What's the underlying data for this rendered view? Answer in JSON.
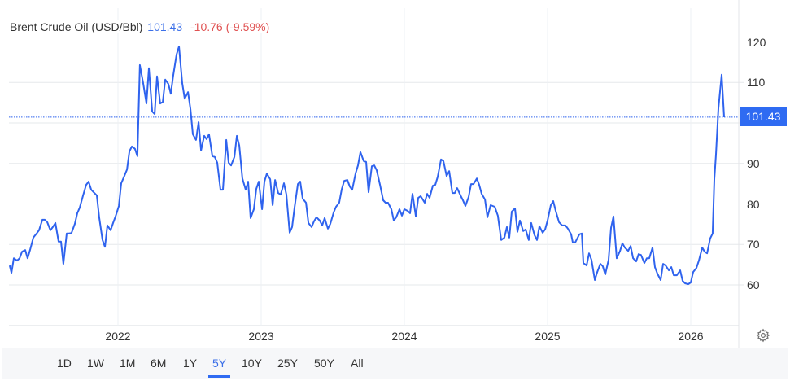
{
  "header": {
    "name": "Brent Crude Oil (USD/Bbl)",
    "price": "101.43",
    "change": "-10.76 (-9.59%)"
  },
  "colors": {
    "line": "#2f63ee",
    "price_text": "#3b6fe8",
    "change_negative": "#e05252",
    "price_tag_bg": "#2f6bf2",
    "grid": "#e6e8eb"
  },
  "y_axis": {
    "ticks": [
      "120",
      "110",
      "90",
      "80",
      "70",
      "60"
    ],
    "tick_values": [
      120,
      110,
      90,
      80,
      70,
      60
    ],
    "current_price_label": "101.43"
  },
  "x_axis": {
    "ticks": [
      "2022",
      "2023",
      "2024",
      "2025",
      "2026"
    ]
  },
  "ranges": {
    "items": [
      "1D",
      "1W",
      "1M",
      "6M",
      "1Y",
      "5Y",
      "10Y",
      "25Y",
      "50Y",
      "All"
    ],
    "active": "5Y"
  },
  "settings_icon": "gear-icon",
  "chart_data": {
    "type": "line",
    "title": "Brent Crude Oil (USD/Bbl)",
    "xlabel": "",
    "ylabel": "USD/Bbl",
    "ylim": [
      50,
      124
    ],
    "xlim": [
      2021.24,
      2026.24
    ],
    "x_ticks": [
      2022,
      2023,
      2024,
      2025,
      2026
    ],
    "y_ticks": [
      60,
      70,
      80,
      90,
      100,
      110,
      120
    ],
    "grid": true,
    "legend": "none",
    "last_value": 101.43,
    "last_change": -10.76,
    "last_change_pct": -9.59,
    "series": [
      {
        "name": "Brent Crude Oil",
        "points": [
          [
            2021.244,
            64.8
          ],
          [
            2021.256,
            63.0
          ],
          [
            2021.273,
            66.6
          ],
          [
            2021.295,
            66.0
          ],
          [
            2021.313,
            66.6
          ],
          [
            2021.33,
            68.2
          ],
          [
            2021.352,
            68.6
          ],
          [
            2021.369,
            66.6
          ],
          [
            2021.386,
            68.6
          ],
          [
            2021.409,
            71.7
          ],
          [
            2021.432,
            72.7
          ],
          [
            2021.449,
            73.5
          ],
          [
            2021.472,
            76.1
          ],
          [
            2021.489,
            76.1
          ],
          [
            2021.506,
            75.5
          ],
          [
            2021.528,
            73.5
          ],
          [
            2021.545,
            74.3
          ],
          [
            2021.563,
            75.3
          ],
          [
            2021.585,
            70.7
          ],
          [
            2021.602,
            70.7
          ],
          [
            2021.619,
            65.2
          ],
          [
            2021.642,
            72.7
          ],
          [
            2021.659,
            72.7
          ],
          [
            2021.676,
            72.9
          ],
          [
            2021.699,
            75.1
          ],
          [
            2021.716,
            77.7
          ],
          [
            2021.733,
            79.1
          ],
          [
            2021.756,
            82.1
          ],
          [
            2021.778,
            84.7
          ],
          [
            2021.795,
            85.5
          ],
          [
            2021.813,
            83.5
          ],
          [
            2021.835,
            82.7
          ],
          [
            2021.852,
            82.1
          ],
          [
            2021.869,
            76.7
          ],
          [
            2021.892,
            71.1
          ],
          [
            2021.909,
            69.4
          ],
          [
            2021.926,
            74.7
          ],
          [
            2021.949,
            73.5
          ],
          [
            2021.966,
            75.3
          ],
          [
            2021.983,
            76.9
          ],
          [
            2022.006,
            79.5
          ],
          [
            2022.023,
            85.1
          ],
          [
            2022.04,
            86.5
          ],
          [
            2022.063,
            88.5
          ],
          [
            2022.08,
            93.0
          ],
          [
            2022.097,
            94.2
          ],
          [
            2022.119,
            93.6
          ],
          [
            2022.136,
            91.8
          ],
          [
            2022.153,
            114.3
          ],
          [
            2022.176,
            109.8
          ],
          [
            2022.199,
            104.8
          ],
          [
            2022.216,
            113.5
          ],
          [
            2022.239,
            102.8
          ],
          [
            2022.256,
            102.2
          ],
          [
            2022.273,
            111.5
          ],
          [
            2022.295,
            104.8
          ],
          [
            2022.313,
            105.2
          ],
          [
            2022.33,
            110.7
          ],
          [
            2022.352,
            109.6
          ],
          [
            2022.369,
            107.2
          ],
          [
            2022.386,
            111.7
          ],
          [
            2022.409,
            116.9
          ],
          [
            2022.426,
            118.9
          ],
          [
            2022.449,
            109.8
          ],
          [
            2022.466,
            106.0
          ],
          [
            2022.489,
            107.6
          ],
          [
            2022.506,
            103.4
          ],
          [
            2022.523,
            97.2
          ],
          [
            2022.545,
            95.8
          ],
          [
            2022.563,
            100.2
          ],
          [
            2022.58,
            93.2
          ],
          [
            2022.602,
            96.8
          ],
          [
            2022.619,
            96.0
          ],
          [
            2022.636,
            97.2
          ],
          [
            2022.659,
            91.8
          ],
          [
            2022.676,
            91.6
          ],
          [
            2022.693,
            90.2
          ],
          [
            2022.716,
            83.5
          ],
          [
            2022.733,
            83.5
          ],
          [
            2022.756,
            95.8
          ],
          [
            2022.773,
            90.2
          ],
          [
            2022.79,
            89.5
          ],
          [
            2022.813,
            91.6
          ],
          [
            2022.83,
            96.8
          ],
          [
            2022.847,
            94.4
          ],
          [
            2022.869,
            86.3
          ],
          [
            2022.892,
            83.5
          ],
          [
            2022.909,
            85.5
          ],
          [
            2022.926,
            76.5
          ],
          [
            2022.949,
            78.7
          ],
          [
            2022.966,
            83.7
          ],
          [
            2022.983,
            85.5
          ],
          [
            2023.006,
            78.7
          ],
          [
            2023.023,
            85.5
          ],
          [
            2023.04,
            87.5
          ],
          [
            2023.063,
            86.1
          ],
          [
            2023.08,
            79.7
          ],
          [
            2023.097,
            85.9
          ],
          [
            2023.119,
            82.7
          ],
          [
            2023.136,
            82.3
          ],
          [
            2023.159,
            85.1
          ],
          [
            2023.176,
            82.3
          ],
          [
            2023.199,
            72.9
          ],
          [
            2023.216,
            74.3
          ],
          [
            2023.233,
            79.1
          ],
          [
            2023.256,
            84.9
          ],
          [
            2023.273,
            85.5
          ],
          [
            2023.29,
            81.3
          ],
          [
            2023.313,
            80.3
          ],
          [
            2023.33,
            75.3
          ],
          [
            2023.352,
            74.3
          ],
          [
            2023.369,
            75.7
          ],
          [
            2023.386,
            76.7
          ],
          [
            2023.409,
            75.9
          ],
          [
            2023.426,
            74.7
          ],
          [
            2023.443,
            76.5
          ],
          [
            2023.466,
            73.9
          ],
          [
            2023.483,
            75.1
          ],
          [
            2023.506,
            77.9
          ],
          [
            2023.523,
            79.3
          ],
          [
            2023.545,
            80.3
          ],
          [
            2023.563,
            83.7
          ],
          [
            2023.58,
            85.7
          ],
          [
            2023.602,
            85.9
          ],
          [
            2023.619,
            84.3
          ],
          [
            2023.636,
            83.5
          ],
          [
            2023.659,
            87.5
          ],
          [
            2023.676,
            89.5
          ],
          [
            2023.693,
            92.8
          ],
          [
            2023.716,
            90.6
          ],
          [
            2023.733,
            90.4
          ],
          [
            2023.75,
            82.9
          ],
          [
            2023.773,
            89.3
          ],
          [
            2023.79,
            89.5
          ],
          [
            2023.807,
            88.3
          ],
          [
            2023.83,
            84.7
          ],
          [
            2023.852,
            80.9
          ],
          [
            2023.869,
            80.3
          ],
          [
            2023.886,
            80.3
          ],
          [
            2023.909,
            78.7
          ],
          [
            2023.926,
            75.9
          ],
          [
            2023.943,
            76.7
          ],
          [
            2023.966,
            78.7
          ],
          [
            2023.983,
            77.1
          ],
          [
            2024.0,
            78.7
          ],
          [
            2024.023,
            78.3
          ],
          [
            2024.04,
            77.7
          ],
          [
            2024.057,
            82.5
          ],
          [
            2024.08,
            76.9
          ],
          [
            2024.097,
            81.5
          ],
          [
            2024.114,
            81.9
          ],
          [
            2024.142,
            80.3
          ],
          [
            2024.159,
            82.5
          ],
          [
            2024.176,
            81.5
          ],
          [
            2024.199,
            84.5
          ],
          [
            2024.216,
            84.7
          ],
          [
            2024.233,
            86.7
          ],
          [
            2024.256,
            91.0
          ],
          [
            2024.273,
            90.6
          ],
          [
            2024.295,
            86.9
          ],
          [
            2024.313,
            88.1
          ],
          [
            2024.335,
            82.7
          ],
          [
            2024.352,
            82.7
          ],
          [
            2024.369,
            83.9
          ],
          [
            2024.392,
            82.1
          ],
          [
            2024.409,
            80.9
          ],
          [
            2024.426,
            79.5
          ],
          [
            2024.449,
            81.7
          ],
          [
            2024.466,
            84.9
          ],
          [
            2024.483,
            84.9
          ],
          [
            2024.506,
            86.3
          ],
          [
            2024.523,
            84.7
          ],
          [
            2024.54,
            82.5
          ],
          [
            2024.563,
            81.1
          ],
          [
            2024.58,
            76.7
          ],
          [
            2024.602,
            79.7
          ],
          [
            2024.631,
            79.3
          ],
          [
            2024.653,
            77.1
          ],
          [
            2024.676,
            71.1
          ],
          [
            2024.699,
            71.7
          ],
          [
            2024.716,
            74.3
          ],
          [
            2024.733,
            71.7
          ],
          [
            2024.75,
            78.1
          ],
          [
            2024.773,
            78.9
          ],
          [
            2024.79,
            73.1
          ],
          [
            2024.807,
            75.9
          ],
          [
            2024.83,
            73.3
          ],
          [
            2024.847,
            73.7
          ],
          [
            2024.869,
            71.1
          ],
          [
            2024.886,
            75.3
          ],
          [
            2024.909,
            72.3
          ],
          [
            2024.926,
            71.1
          ],
          [
            2024.943,
            74.5
          ],
          [
            2024.966,
            72.9
          ],
          [
            2024.983,
            73.7
          ],
          [
            2025.0,
            75.9
          ],
          [
            2025.023,
            79.7
          ],
          [
            2025.04,
            80.7
          ],
          [
            2025.057,
            78.3
          ],
          [
            2025.08,
            75.5
          ],
          [
            2025.102,
            74.7
          ],
          [
            2025.125,
            74.7
          ],
          [
            2025.142,
            73.9
          ],
          [
            2025.165,
            72.5
          ],
          [
            2025.176,
            70.5
          ],
          [
            2025.193,
            70.5
          ],
          [
            2025.222,
            72.5
          ],
          [
            2025.239,
            72.7
          ],
          [
            2025.25,
            65.4
          ],
          [
            2025.273,
            64.8
          ],
          [
            2025.29,
            67.8
          ],
          [
            2025.307,
            66.2
          ],
          [
            2025.33,
            61.2
          ],
          [
            2025.347,
            63.2
          ],
          [
            2025.369,
            65.2
          ],
          [
            2025.386,
            64.6
          ],
          [
            2025.403,
            62.6
          ],
          [
            2025.426,
            66.2
          ],
          [
            2025.443,
            74.1
          ],
          [
            2025.46,
            76.9
          ],
          [
            2025.483,
            66.6
          ],
          [
            2025.506,
            68.4
          ],
          [
            2025.523,
            70.3
          ],
          [
            2025.54,
            69.2
          ],
          [
            2025.563,
            68.4
          ],
          [
            2025.58,
            69.6
          ],
          [
            2025.597,
            66.6
          ],
          [
            2025.619,
            65.8
          ],
          [
            2025.636,
            67.6
          ],
          [
            2025.653,
            67.4
          ],
          [
            2025.676,
            65.4
          ],
          [
            2025.693,
            66.6
          ],
          [
            2025.71,
            66.6
          ],
          [
            2025.733,
            69.2
          ],
          [
            2025.75,
            64.4
          ],
          [
            2025.767,
            62.8
          ],
          [
            2025.79,
            61.2
          ],
          [
            2025.807,
            65.2
          ],
          [
            2025.824,
            64.8
          ],
          [
            2025.847,
            63.6
          ],
          [
            2025.864,
            64.4
          ],
          [
            2025.881,
            62.4
          ],
          [
            2025.903,
            62.4
          ],
          [
            2025.926,
            63.6
          ],
          [
            2025.943,
            61.0
          ],
          [
            2025.96,
            60.4
          ],
          [
            2025.983,
            60.2
          ],
          [
            2026.0,
            60.6
          ],
          [
            2026.017,
            63.2
          ],
          [
            2026.04,
            64.2
          ],
          [
            2026.057,
            66.0
          ],
          [
            2026.08,
            69.2
          ],
          [
            2026.097,
            68.2
          ],
          [
            2026.114,
            67.8
          ],
          [
            2026.136,
            71.5
          ],
          [
            2026.153,
            72.7
          ],
          [
            2026.165,
            86.1
          ],
          [
            2026.176,
            92.2
          ],
          [
            2026.193,
            103.6
          ],
          [
            2026.216,
            111.9
          ],
          [
            2026.233,
            101.43
          ]
        ]
      }
    ]
  }
}
